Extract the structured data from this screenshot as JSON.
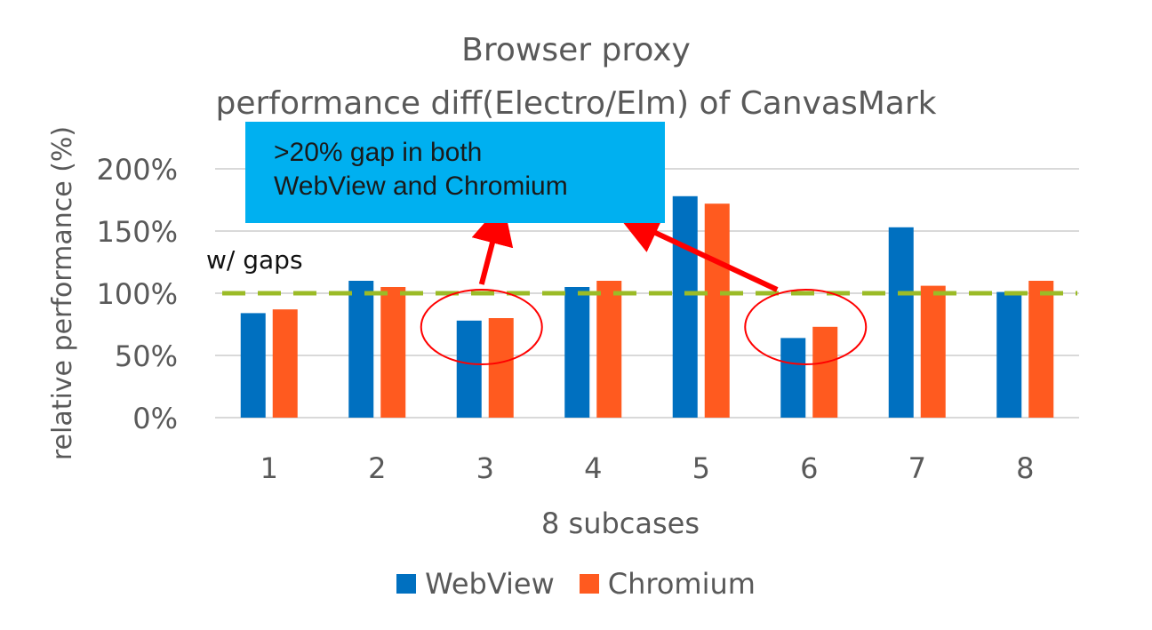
{
  "chart_data": {
    "type": "bar",
    "title": "Browser proxy",
    "subtitle": "performance diff(Electro/Elm) of CanvasMark",
    "xlabel": "8 subcases",
    "ylabel": "relative performance (%)",
    "categories": [
      "1",
      "2",
      "3",
      "4",
      "5",
      "6",
      "7",
      "8"
    ],
    "series": [
      {
        "name": "WebView",
        "color": "#0070c0",
        "values": [
          84,
          110,
          78,
          105,
          178,
          64,
          153,
          101
        ]
      },
      {
        "name": "Chromium",
        "color": "#ff5a1f",
        "values": [
          87,
          105,
          80,
          110,
          172,
          73,
          106,
          110
        ]
      }
    ],
    "ylim": [
      0,
      200
    ],
    "yticks": [
      0,
      50,
      100,
      150,
      200
    ],
    "ytick_labels": [
      "0%",
      "50%",
      "100%",
      "150%",
      "200%"
    ],
    "grid": true,
    "legend": "bottom",
    "reference_line": {
      "value": 100,
      "label": "w/ gaps",
      "color": "#9bbb27"
    },
    "annotation": {
      "text_lines": [
        ">20% gap in both",
        "WebView and Chromium"
      ],
      "box_color": "#00b0f0",
      "highlighted_categories": [
        "3",
        "6"
      ],
      "marker_color": "#ff0000"
    }
  }
}
